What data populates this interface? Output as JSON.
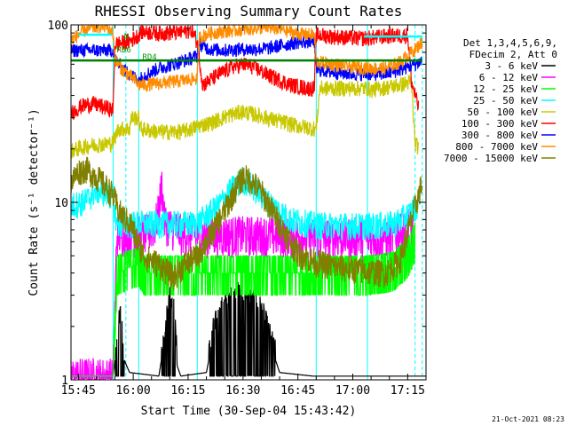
{
  "chart_data": {
    "type": "line",
    "title": "RHESSI Observing Summary Count Rates",
    "xlabel": "Start Time (30-Sep-04 15:43:42)",
    "ylabel": "Count Rate (s⁻¹ detector⁻¹)",
    "yscale": "log",
    "ylim": [
      1,
      100
    ],
    "xlim_minutes": [
      -2,
      95
    ],
    "x_unit_note": "x values are minutes after 15:45",
    "xticks": [
      {
        "label": "15:45",
        "m": 0
      },
      {
        "label": "16:00",
        "m": 15
      },
      {
        "label": "16:15",
        "m": 30
      },
      {
        "label": "16:30",
        "m": 45
      },
      {
        "label": "16:45",
        "m": 60
      },
      {
        "label": "17:00",
        "m": 75
      },
      {
        "label": "17:15",
        "m": 90
      }
    ],
    "yticks": [
      {
        "label": "1",
        "v": 1
      },
      {
        "label": "10",
        "v": 10
      },
      {
        "label": "100",
        "v": 100
      }
    ],
    "legend_header": [
      "Det 1,3,4,5,6,9,",
      "FDecim 2, Att 0"
    ],
    "annotations": [
      {
        "text": "N",
        "m": 12.5,
        "v": 83,
        "color": "#00a000"
      },
      {
        "text": "RD6",
        "m": 10.5,
        "v": 70,
        "color": "#00a000"
      },
      {
        "text": "RD4",
        "m": 17.5,
        "v": 64,
        "color": "#00a000"
      }
    ],
    "vlines_solid": [
      9.5,
      16.5,
      32.5,
      65,
      79
    ],
    "vlines_dashed": [
      13,
      92,
      94
    ],
    "series": [
      {
        "name": "3 - 6 keV",
        "color": "#000000",
        "points": [
          [
            -2,
            1.05
          ],
          [
            9.5,
            1.05
          ],
          [
            11.5,
            2.2
          ],
          [
            12.5,
            1.3
          ],
          [
            14,
            1.1
          ],
          [
            22,
            1.05
          ],
          [
            24,
            1.9
          ],
          [
            25,
            2.6
          ],
          [
            26,
            2.5
          ],
          [
            27,
            1.2
          ],
          [
            28,
            1.05
          ],
          [
            35,
            1.1
          ],
          [
            37,
            1.8
          ],
          [
            40,
            2.5
          ],
          [
            44,
            2.8
          ],
          [
            47,
            2.6
          ],
          [
            50,
            2.3
          ],
          [
            52,
            1.7
          ],
          [
            55,
            1.1
          ],
          [
            64,
            1.05
          ],
          [
            95,
            1.05
          ]
        ]
      },
      {
        "name": "6 - 12 keV",
        "color": "#ff00ff",
        "points": [
          [
            -2,
            1.05
          ],
          [
            9.5,
            1.05
          ],
          [
            10.5,
            6.6
          ],
          [
            16.5,
            6.6
          ],
          [
            19,
            6.8
          ],
          [
            21,
            7.5
          ],
          [
            22,
            9
          ],
          [
            22.8,
            13
          ],
          [
            23.5,
            8
          ],
          [
            25,
            7.4
          ],
          [
            28,
            6.8
          ],
          [
            32,
            6.6
          ],
          [
            50,
            6.6
          ],
          [
            65,
            6.4
          ],
          [
            76,
            6.5
          ],
          [
            83,
            6.4
          ],
          [
            86,
            6.5
          ],
          [
            90,
            7.1
          ],
          [
            92,
            7.8
          ]
        ]
      },
      {
        "name": "12 - 25 keV",
        "color": "#00ff00",
        "points": [
          [
            -2,
            1.05
          ],
          [
            9.5,
            1.05
          ],
          [
            10.5,
            4
          ],
          [
            16.5,
            4.5
          ],
          [
            18,
            4
          ],
          [
            32.5,
            4
          ],
          [
            50,
            4
          ],
          [
            65,
            4
          ],
          [
            79,
            4
          ],
          [
            86,
            4.2
          ],
          [
            90,
            5
          ],
          [
            92,
            6.2
          ]
        ]
      },
      {
        "name": "25 - 50 keV",
        "color": "#00ffff",
        "points": [
          [
            -2,
            9.6
          ],
          [
            2,
            10.2
          ],
          [
            5,
            11.8
          ],
          [
            8,
            11.2
          ],
          [
            9.5,
            10.8
          ],
          [
            10.5,
            7.5
          ],
          [
            16.5,
            7.6
          ],
          [
            32.5,
            7.6
          ],
          [
            38,
            9.5
          ],
          [
            42,
            12
          ],
          [
            45,
            13.5
          ],
          [
            48,
            12.2
          ],
          [
            52,
            10
          ],
          [
            58,
            8
          ],
          [
            65,
            7.5
          ],
          [
            79,
            7.4
          ],
          [
            86,
            7.6
          ],
          [
            90,
            8.5
          ],
          [
            93,
            10
          ]
        ]
      },
      {
        "name": "50 - 100 keV",
        "color": "#c8c800",
        "points": [
          [
            -2,
            19.5
          ],
          [
            3,
            21
          ],
          [
            9,
            21.5
          ],
          [
            9.5,
            22
          ],
          [
            11,
            26
          ],
          [
            14,
            26
          ],
          [
            14.5,
            30
          ],
          [
            16.5,
            30
          ],
          [
            17,
            26
          ],
          [
            22,
            25
          ],
          [
            28,
            25
          ],
          [
            31,
            26
          ],
          [
            32.5,
            27
          ],
          [
            36,
            28
          ],
          [
            41,
            31
          ],
          [
            45,
            32.5
          ],
          [
            49,
            31
          ],
          [
            54,
            29
          ],
          [
            60,
            27
          ],
          [
            65,
            26
          ],
          [
            66,
            44
          ],
          [
            79,
            44
          ],
          [
            80,
            43
          ],
          [
            88,
            46
          ],
          [
            91,
            48
          ],
          [
            92,
            22
          ],
          [
            93,
            20
          ]
        ]
      },
      {
        "name": "100 - 300 keV",
        "color": "#ff0000",
        "points": [
          [
            -2,
            32
          ],
          [
            1,
            35
          ],
          [
            4,
            36
          ],
          [
            8,
            34
          ],
          [
            9.5,
            33
          ],
          [
            10,
            78
          ],
          [
            13,
            80
          ],
          [
            14.5,
            82
          ],
          [
            15.5,
            85
          ],
          [
            16.5,
            88
          ],
          [
            17,
            92
          ],
          [
            22,
            90
          ],
          [
            28,
            91
          ],
          [
            31,
            94
          ],
          [
            32.5,
            80
          ],
          [
            34,
            46
          ],
          [
            38,
            52
          ],
          [
            42,
            58
          ],
          [
            45,
            60
          ],
          [
            48,
            58
          ],
          [
            52,
            52
          ],
          [
            58,
            46
          ],
          [
            63,
            44
          ],
          [
            64.5,
            44
          ],
          [
            65,
            88
          ],
          [
            70,
            86
          ],
          [
            77,
            84
          ],
          [
            81,
            85
          ],
          [
            85,
            87
          ],
          [
            88,
            87
          ],
          [
            90,
            88
          ],
          [
            91,
            48
          ],
          [
            93,
            34
          ]
        ]
      },
      {
        "name": "300 - 800 keV",
        "color": "#0000ff",
        "points": [
          [
            -2,
            72
          ],
          [
            9.5,
            72
          ],
          [
            10,
            64
          ],
          [
            12,
            57
          ],
          [
            14.5,
            52
          ],
          [
            16.5,
            49
          ],
          [
            18,
            52
          ],
          [
            22,
            57
          ],
          [
            28,
            62
          ],
          [
            31,
            65
          ],
          [
            32.5,
            67
          ],
          [
            33,
            78
          ],
          [
            36,
            73
          ],
          [
            40,
            72
          ],
          [
            44,
            73
          ],
          [
            48,
            73
          ],
          [
            52,
            74
          ],
          [
            56,
            77
          ],
          [
            60,
            80
          ],
          [
            64.5,
            81
          ],
          [
            65,
            56
          ],
          [
            70,
            54
          ],
          [
            75,
            53
          ],
          [
            80,
            53
          ],
          [
            84,
            53
          ],
          [
            88,
            56
          ],
          [
            92,
            60
          ],
          [
            94,
            63
          ]
        ]
      },
      {
        "name": "800 - 7000 keV",
        "color": "#ff8c00",
        "points": [
          [
            -2,
            82
          ],
          [
            2,
            94
          ],
          [
            6,
            99
          ],
          [
            8,
            97
          ],
          [
            9.5,
            90
          ],
          [
            10,
            64
          ],
          [
            12,
            56
          ],
          [
            14.5,
            51
          ],
          [
            16.5,
            46
          ],
          [
            18,
            46
          ],
          [
            22,
            47
          ],
          [
            26,
            48
          ],
          [
            30,
            49
          ],
          [
            32.5,
            50
          ],
          [
            33,
            85
          ],
          [
            36,
            90
          ],
          [
            40,
            92
          ],
          [
            44,
            94
          ],
          [
            48,
            96
          ],
          [
            52,
            97
          ],
          [
            56,
            94
          ],
          [
            60,
            89
          ],
          [
            64.5,
            88
          ],
          [
            65,
            62
          ],
          [
            70,
            60
          ],
          [
            75,
            58
          ],
          [
            80,
            57
          ],
          [
            84,
            57
          ],
          [
            88,
            62
          ],
          [
            92,
            73
          ],
          [
            94,
            80
          ]
        ]
      },
      {
        "name": "7000 - 15000 keV",
        "color": "#808000",
        "points": [
          [
            -2,
            13
          ],
          [
            0,
            15
          ],
          [
            2,
            15.5
          ],
          [
            5,
            14
          ],
          [
            8,
            12
          ],
          [
            9.5,
            11
          ],
          [
            11,
            9
          ],
          [
            13,
            8
          ],
          [
            14.5,
            7.5
          ],
          [
            15.5,
            6.5
          ],
          [
            16.5,
            5.8
          ],
          [
            18,
            5
          ],
          [
            22,
            4.5
          ],
          [
            26,
            3.8
          ],
          [
            29,
            4.5
          ],
          [
            32.5,
            5
          ],
          [
            36,
            6.5
          ],
          [
            40,
            9
          ],
          [
            43,
            12
          ],
          [
            45,
            14
          ],
          [
            47,
            13.5
          ],
          [
            50,
            11.5
          ],
          [
            53,
            9
          ],
          [
            56,
            7
          ],
          [
            60,
            5.2
          ],
          [
            65,
            4.6
          ],
          [
            72,
            4.3
          ],
          [
            79,
            4.1
          ],
          [
            84,
            4
          ],
          [
            88,
            4.8
          ],
          [
            91,
            8
          ],
          [
            94,
            13
          ]
        ]
      }
    ],
    "hlines": [
      {
        "color": "#00ffff",
        "from": 0,
        "to": 9,
        "v": 88
      },
      {
        "color": "#00ffff",
        "from": 78,
        "to": 94,
        "v": 86
      },
      {
        "color": "#008000",
        "from": -2,
        "to": 94,
        "v": 63
      }
    ]
  },
  "footer": {
    "timestamp": "21-Oct-2021 08:23"
  }
}
